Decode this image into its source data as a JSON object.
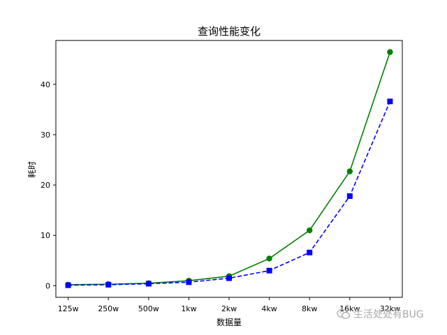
{
  "watermark": {
    "text": "生活处处有BUG",
    "icon": "wechat-icon"
  },
  "chart_data": {
    "type": "line",
    "title": "查询性能变化",
    "xlabel": "数据量",
    "ylabel": "耗时",
    "categories": [
      "125w",
      "250w",
      "500w",
      "1kw",
      "2kw",
      "4kw",
      "8kw",
      "16kw",
      "32kw"
    ],
    "ylim": [
      -2.3,
      48.7
    ],
    "yticks": [
      0,
      10,
      20,
      30,
      40
    ],
    "grid": false,
    "series": [
      {
        "values": [
          0.2,
          0.3,
          0.5,
          1.0,
          1.9,
          5.4,
          11.0,
          22.7,
          46.4
        ],
        "color": "#008000",
        "linestyle": "solid",
        "marker": "circle"
      },
      {
        "values": [
          0.1,
          0.2,
          0.4,
          0.7,
          1.5,
          3.0,
          6.6,
          17.8,
          36.6
        ],
        "color": "#0000ff",
        "linestyle": "dashed",
        "marker": "square"
      }
    ]
  }
}
